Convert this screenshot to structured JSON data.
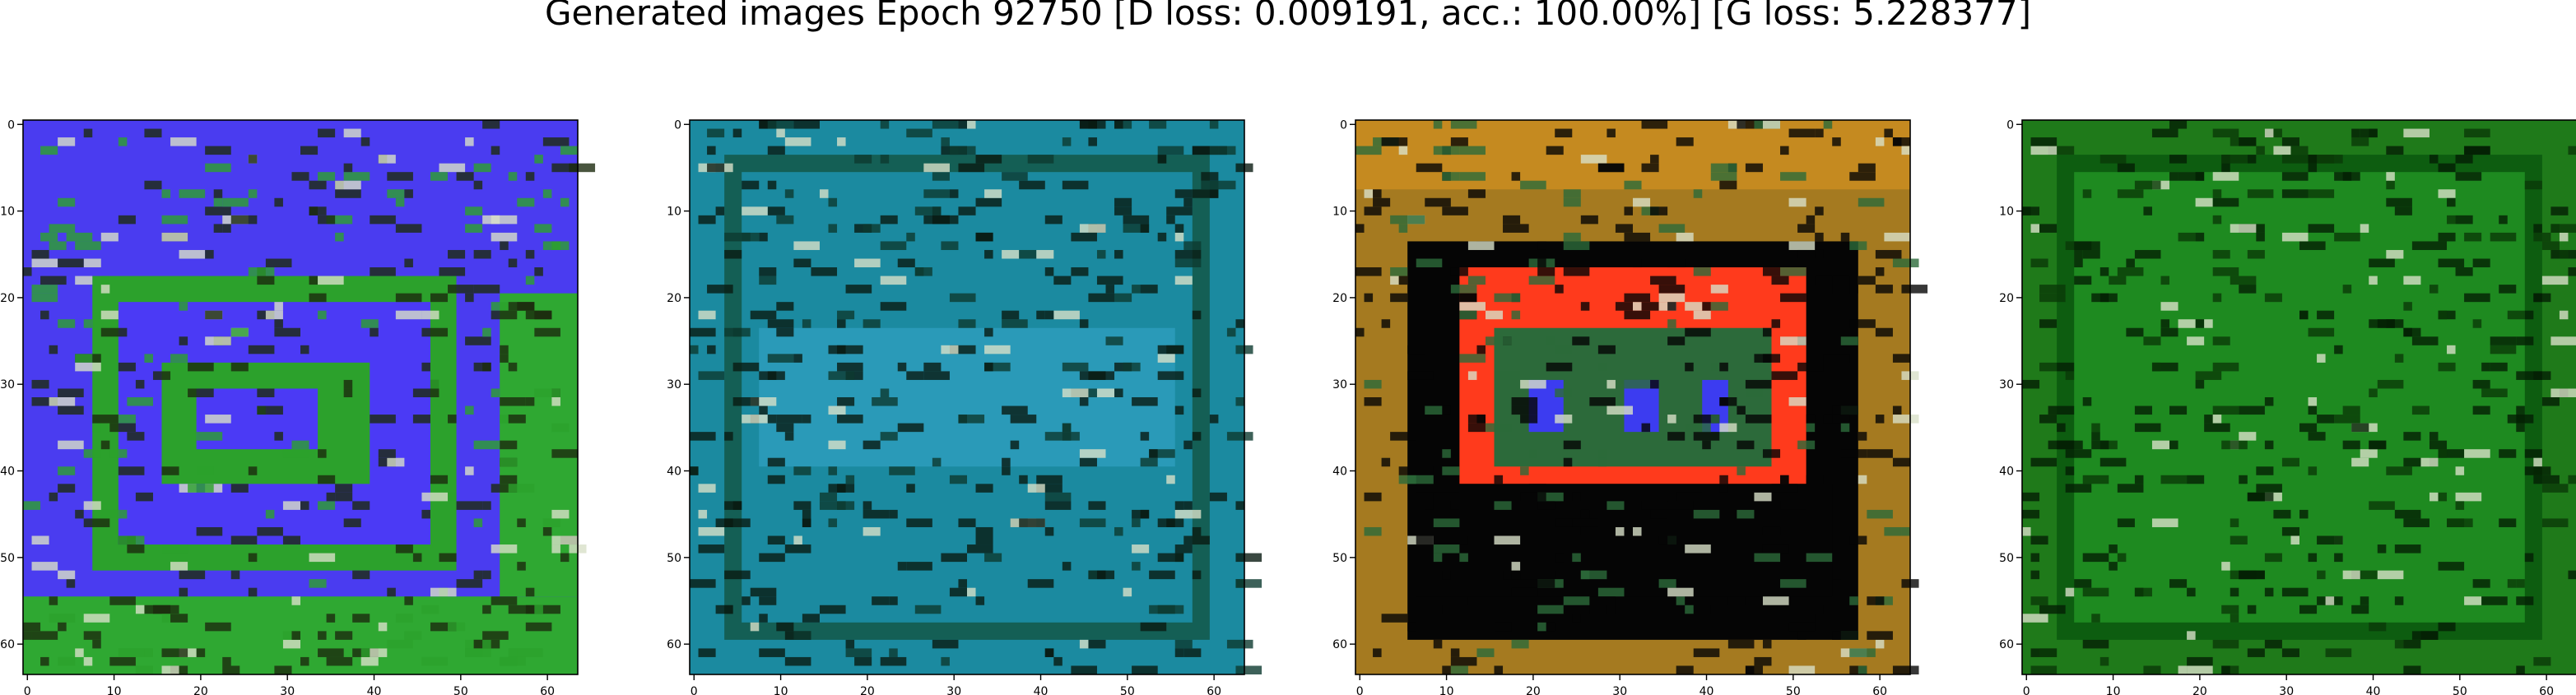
{
  "figure": {
    "suptitle": "Generated images Epoch 92750 [D loss: 0.009191, acc.: 100.00%] [G loss: 5.228377]"
  },
  "axes": {
    "x_ticks": [
      "0",
      "10",
      "20",
      "30",
      "40",
      "50",
      "60"
    ],
    "y_ticks": [
      "0",
      "10",
      "20",
      "30",
      "40",
      "50",
      "60"
    ],
    "range": [
      0,
      63
    ],
    "image_size": 64
  },
  "panels": [
    {
      "id": "panel-1",
      "description_colors": {
        "background": "#4a3cf0",
        "border_accent": "#2fa832",
        "center_block": "#4b3af5",
        "inner_green": "#2ca12c",
        "dark_spots": "#1b2a0e"
      }
    },
    {
      "id": "panel-2",
      "description_colors": {
        "background": "#1b8aa0",
        "border_accent": "#145f55",
        "center_block": "#2a9ab8",
        "inner_green": "#0d3a30",
        "dark_spots": "#091a12"
      }
    },
    {
      "id": "panel-3",
      "description_colors": {
        "background": "#a57a20",
        "border_accent": "#c58a20",
        "center_block": "#ff3a1c",
        "inner_green": "#2c6a3a",
        "dark_spots": "#050505"
      }
    },
    {
      "id": "panel-4",
      "description_colors": {
        "background": "#1f7a1a",
        "border_accent": "#0d5d10",
        "center_block": "#1e8a20",
        "inner_green": "#0a3a08",
        "dark_spots": "#041f04"
      }
    }
  ]
}
